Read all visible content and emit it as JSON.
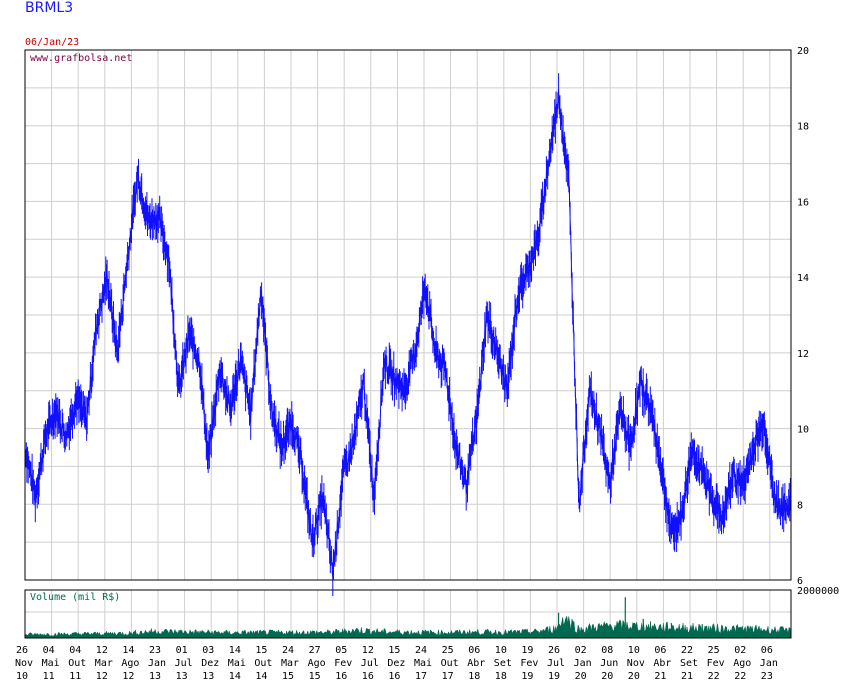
{
  "header": {
    "ticker": "BRML3",
    "date": "06/Jan/23",
    "source": "www.grafbolsa.net"
  },
  "colors": {
    "price_line": "#1010ff",
    "volume_area": "#006a50",
    "grid": "#cfcfcf",
    "frame": "#000000",
    "date": "#cc0000"
  },
  "chart_data": [
    {
      "type": "line",
      "title": "BRML3",
      "ylim": [
        6,
        20
      ],
      "y_ticks": [
        "6",
        "8",
        "10",
        "12",
        "14",
        "16",
        "18",
        "20"
      ],
      "grid": true,
      "series": [
        {
          "x": [
            0,
            2,
            4,
            6,
            8,
            10,
            12,
            14,
            16,
            18,
            20,
            22,
            24,
            26,
            28,
            30,
            32,
            34,
            35.7,
            38,
            40,
            42,
            44,
            46,
            48,
            50,
            52,
            54,
            56,
            58,
            60,
            62,
            64,
            66,
            68,
            70,
            72,
            74,
            76,
            78,
            80,
            82,
            84,
            86,
            88,
            90,
            92,
            94,
            96,
            98,
            100,
            102,
            104,
            106,
            108,
            110,
            112,
            114,
            116,
            118,
            120,
            122,
            124,
            126,
            128,
            130,
            132,
            134,
            136,
            138,
            140,
            142,
            144,
            146,
            148,
            149.3
          ],
          "values": [
            9.5,
            8.2,
            9.8,
            10.5,
            9.8,
            10.8,
            10.2,
            12.8,
            14.0,
            12.0,
            14.5,
            16.7,
            15.5,
            15.6,
            14.5,
            11.0,
            12.5,
            11.8,
            9.2,
            11.6,
            10.5,
            11.8,
            10.4,
            13.7,
            10.5,
            9.5,
            10.2,
            9.0,
            7.0,
            8.2,
            6.2,
            8.8,
            9.6,
            11.2,
            8.2,
            11.8,
            11.3,
            11.0,
            12.0,
            13.8,
            12.0,
            11.5,
            9.5,
            8.5,
            10.2,
            13.0,
            12.0,
            11.0,
            13.5,
            14.2,
            15.0,
            17.0,
            18.8,
            16.5,
            8.0,
            11.0,
            10.0,
            8.5,
            10.5,
            9.5,
            11.2,
            10.5,
            9.0,
            7.2,
            7.7,
            9.5,
            8.8,
            8.2,
            7.6,
            8.8,
            8.5,
            9.5,
            10.2,
            8.2,
            7.8,
            8.2
          ]
        }
      ],
      "x_ticks": [
        {
          "day": "26",
          "month": "Nov",
          "year": "10"
        },
        {
          "day": "04",
          "month": "Mai",
          "year": "11"
        },
        {
          "day": "04",
          "month": "Out",
          "year": "11"
        },
        {
          "day": "12",
          "month": "Mar",
          "year": "12"
        },
        {
          "day": "14",
          "month": "Ago",
          "year": "12"
        },
        {
          "day": "23",
          "month": "Jan",
          "year": "13"
        },
        {
          "day": "01",
          "month": "Jul",
          "year": "13"
        },
        {
          "day": "03",
          "month": "Dez",
          "year": "13"
        },
        {
          "day": "14",
          "month": "Mai",
          "year": "14"
        },
        {
          "day": "15",
          "month": "Out",
          "year": "14"
        },
        {
          "day": "24",
          "month": "Mar",
          "year": "15"
        },
        {
          "day": "27",
          "month": "Ago",
          "year": "15"
        },
        {
          "day": "05",
          "month": "Fev",
          "year": "16"
        },
        {
          "day": "12",
          "month": "Jul",
          "year": "16"
        },
        {
          "day": "15",
          "month": "Dez",
          "year": "16"
        },
        {
          "day": "24",
          "month": "Mai",
          "year": "17"
        },
        {
          "day": "25",
          "month": "Out",
          "year": "17"
        },
        {
          "day": "06",
          "month": "Abr",
          "year": "18"
        },
        {
          "day": "10",
          "month": "Set",
          "year": "18"
        },
        {
          "day": "19",
          "month": "Fev",
          "year": "19"
        },
        {
          "day": "26",
          "month": "Jul",
          "year": "19"
        },
        {
          "day": "02",
          "month": "Jan",
          "year": "20"
        },
        {
          "day": "08",
          "month": "Jun",
          "year": "20"
        },
        {
          "day": "10",
          "month": "Nov",
          "year": "20"
        },
        {
          "day": "06",
          "month": "Abr",
          "year": "21"
        },
        {
          "day": "22",
          "month": "Set",
          "year": "21"
        },
        {
          "day": "25",
          "month": "Fev",
          "year": "22"
        },
        {
          "day": "02",
          "month": "Ago",
          "year": "22"
        },
        {
          "day": "06",
          "month": "Jan",
          "year": "23"
        }
      ]
    },
    {
      "type": "area",
      "title": "Volume (mil R$)",
      "ylim": [
        0,
        2000000
      ],
      "y_ticks": [
        "2000000"
      ],
      "grid": true,
      "series": [
        {
          "x": [
            0,
            10,
            20,
            25,
            30,
            40,
            50,
            60,
            65,
            70,
            80,
            90,
            95,
            100,
            104,
            105,
            108,
            110,
            115,
            120,
            125,
            130,
            135,
            140,
            145,
            149.3
          ],
          "values": [
            150000,
            170000,
            200000,
            280000,
            260000,
            220000,
            230000,
            240000,
            330000,
            260000,
            230000,
            250000,
            240000,
            270000,
            420000,
            900000,
            350000,
            420000,
            520000,
            480000,
            450000,
            420000,
            400000,
            380000,
            350000,
            300000
          ],
          "spikes": [
            {
              "x": 104,
              "value": 1050000
            },
            {
              "x": 117,
              "value": 1700000
            },
            {
              "x": 120.5,
              "value": 800000
            },
            {
              "x": 126,
              "value": 620000
            },
            {
              "x": 132,
              "value": 580000
            }
          ]
        }
      ]
    }
  ]
}
